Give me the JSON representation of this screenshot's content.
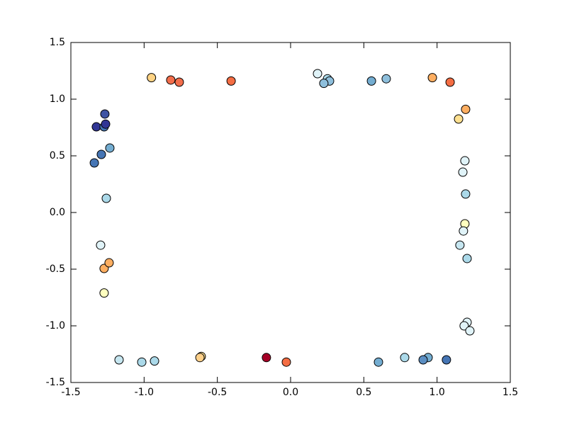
{
  "chart_data": {
    "type": "scatter",
    "x": [
      -0.95,
      -0.818,
      -0.76,
      -0.406,
      0.184,
      0.252,
      0.266,
      0.227,
      0.552,
      0.653,
      0.968,
      1.089,
      1.195,
      1.147,
      1.19,
      1.176,
      1.195,
      1.19,
      1.18,
      1.156,
      1.205,
      1.205,
      1.185,
      1.224,
      1.064,
      0.939,
      0.905,
      0.779,
      0.6,
      -0.029,
      -0.165,
      -0.61,
      -0.619,
      -0.929,
      -1.016,
      -1.171,
      -1.273,
      -1.273,
      -1.239,
      -1.297,
      -1.258,
      -1.34,
      -1.234,
      -1.292,
      -1.326,
      -1.273,
      -1.263,
      -1.268
    ],
    "values": [
      1.19,
      1.169,
      1.15,
      1.16,
      1.225,
      1.18,
      1.16,
      1.14,
      1.16,
      1.18,
      1.19,
      1.15,
      0.91,
      0.825,
      0.456,
      0.356,
      0.163,
      -0.1,
      -0.163,
      -0.288,
      -0.406,
      -0.969,
      -1.0,
      -1.044,
      -1.3,
      -1.28,
      -1.3,
      -1.28,
      -1.32,
      -1.32,
      -1.28,
      -1.27,
      -1.28,
      -1.31,
      -1.32,
      -1.3,
      -0.71,
      -0.494,
      -0.444,
      -0.288,
      0.125,
      0.4375,
      0.569,
      0.5125,
      0.756,
      0.756,
      0.78,
      0.869
    ],
    "colors": [
      "#fed384",
      "#f26d4b",
      "#f26d4b",
      "#f46d43",
      "#e0f3f8",
      "#abd9e9",
      "#8ebfdc",
      "#8ebfdc",
      "#74add1",
      "#8ebfdc",
      "#fdae61",
      "#f46d43",
      "#fdae61",
      "#fee090",
      "#e0f3f8",
      "#e0f3f8",
      "#abd9e9",
      "#ffffbf",
      "#e0f3f8",
      "#c6e6f0",
      "#abd9e9",
      "#e0f3f8",
      "#e0f3f8",
      "#e0f3f8",
      "#4575b4",
      "#74add1",
      "#5b8ec2",
      "#abd9e9",
      "#74add1",
      "#f46d43",
      "#a50026",
      "#fee090",
      "#fdd08a",
      "#abd9e9",
      "#abd9e9",
      "#c6e6f0",
      "#ffffbf",
      "#fdae61",
      "#fdae61",
      "#e0f3f8",
      "#abd9e9",
      "#4575b4",
      "#74add1",
      "#4575b4",
      "#313695",
      "#4575b4",
      "#313695",
      "#3f54a3"
    ],
    "xlim": [
      -1.5,
      1.5
    ],
    "ylim": [
      -1.5,
      1.5
    ],
    "xticks": [
      -1.5,
      {
        "value": -1,
        "label": "-1.0"
      },
      -0.5,
      {
        "value": 0,
        "label": "0.0"
      },
      0.5,
      {
        "value": 1,
        "label": "1.0"
      },
      1.5
    ],
    "yticks": [
      -1.5,
      {
        "value": -1,
        "label": "-1.0"
      },
      -0.5,
      {
        "value": 0,
        "label": "0.0"
      },
      0.5,
      {
        "value": 1,
        "label": "1.0"
      },
      1.5
    ]
  }
}
